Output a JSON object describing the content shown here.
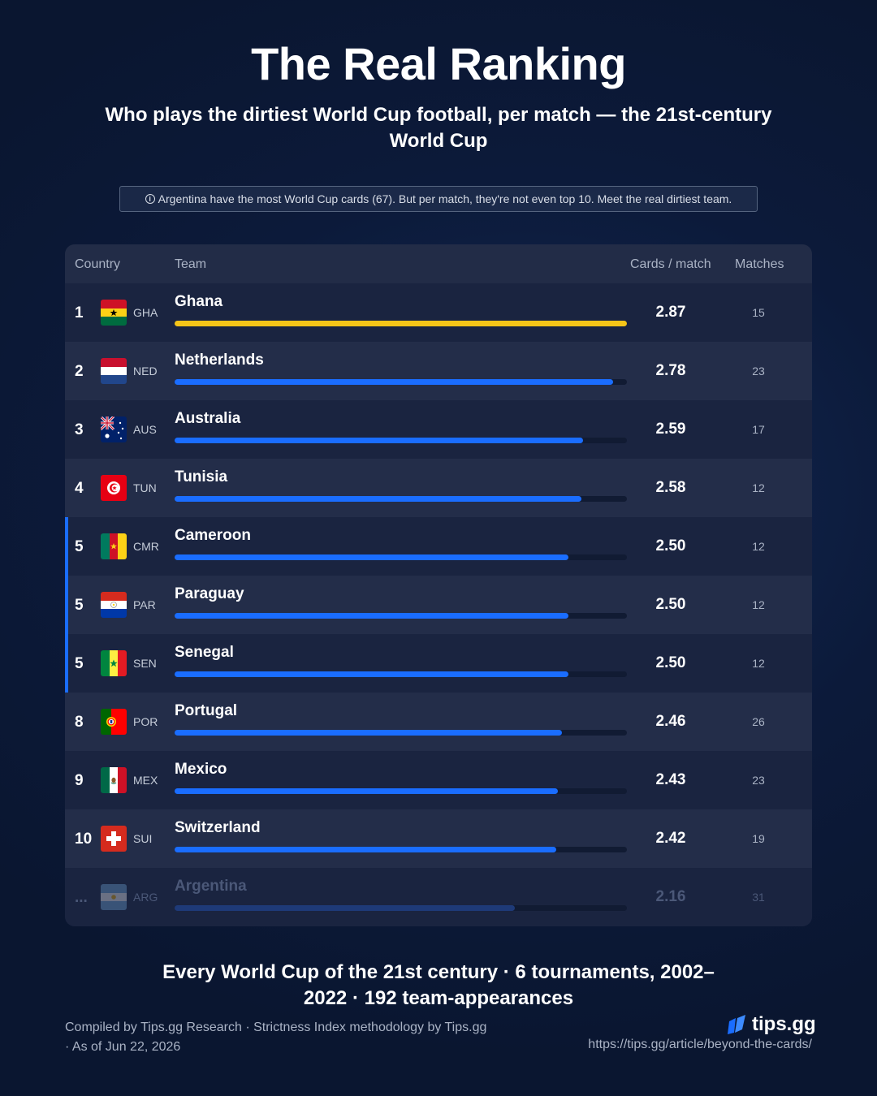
{
  "title": "The Real Ranking",
  "subtitle": "Who plays the dirtiest World Cup football, per match — the 21st-century World Cup",
  "note": "Argentina have the most World Cup cards (67). But per match, they're not even top 10. Meet the real dirtiest team.",
  "headers": {
    "country": "Country",
    "team": "Team",
    "cards": "Cards / match",
    "matches": "Matches"
  },
  "colors": {
    "background": "#0c1a3a",
    "bar_primary": "#1a6dff",
    "bar_leader": "#f5c518",
    "bar_muted": "#1e3a78"
  },
  "chart_data": {
    "type": "bar",
    "orientation": "horizontal",
    "xlim": [
      0,
      2.87
    ],
    "rows": [
      {
        "rank": "1",
        "code": "GHA",
        "team": "Ghana",
        "value": 2.87,
        "display": "2.87",
        "matches": "15",
        "flag": "ghana",
        "highlight": true
      },
      {
        "rank": "2",
        "code": "NED",
        "team": "Netherlands",
        "value": 2.78,
        "display": "2.78",
        "matches": "23",
        "flag": "netherlands"
      },
      {
        "rank": "3",
        "code": "AUS",
        "team": "Australia",
        "value": 2.59,
        "display": "2.59",
        "matches": "17",
        "flag": "australia"
      },
      {
        "rank": "4",
        "code": "TUN",
        "team": "Tunisia",
        "value": 2.58,
        "display": "2.58",
        "matches": "12",
        "flag": "tunisia"
      },
      {
        "rank": "5",
        "code": "CMR",
        "team": "Cameroon",
        "value": 2.5,
        "display": "2.50",
        "matches": "12",
        "flag": "cameroon",
        "tie": true
      },
      {
        "rank": "5",
        "code": "PAR",
        "team": "Paraguay",
        "value": 2.5,
        "display": "2.50",
        "matches": "12",
        "flag": "paraguay",
        "tie": true
      },
      {
        "rank": "5",
        "code": "SEN",
        "team": "Senegal",
        "value": 2.5,
        "display": "2.50",
        "matches": "12",
        "flag": "senegal",
        "tie": true
      },
      {
        "rank": "8",
        "code": "POR",
        "team": "Portugal",
        "value": 2.46,
        "display": "2.46",
        "matches": "26",
        "flag": "portugal"
      },
      {
        "rank": "9",
        "code": "MEX",
        "team": "Mexico",
        "value": 2.43,
        "display": "2.43",
        "matches": "23",
        "flag": "mexico"
      },
      {
        "rank": "10",
        "code": "SUI",
        "team": "Switzerland",
        "value": 2.42,
        "display": "2.42",
        "matches": "19",
        "flag": "switzerland"
      },
      {
        "rank": "...",
        "code": "ARG",
        "team": "Argentina",
        "value": 2.16,
        "display": "2.16",
        "matches": "31",
        "flag": "argentina",
        "dim": true
      }
    ]
  },
  "footer": {
    "summary": "Every World Cup of the 21st century · 6 tournaments, 2002–2022 · 192 team-appearances",
    "credit": "Compiled by Tips.gg Research · Strictness Index methodology by Tips.gg · As of Jun 22, 2026",
    "brand": "tips.gg",
    "url": "https://tips.gg/article/beyond-the-cards/"
  }
}
